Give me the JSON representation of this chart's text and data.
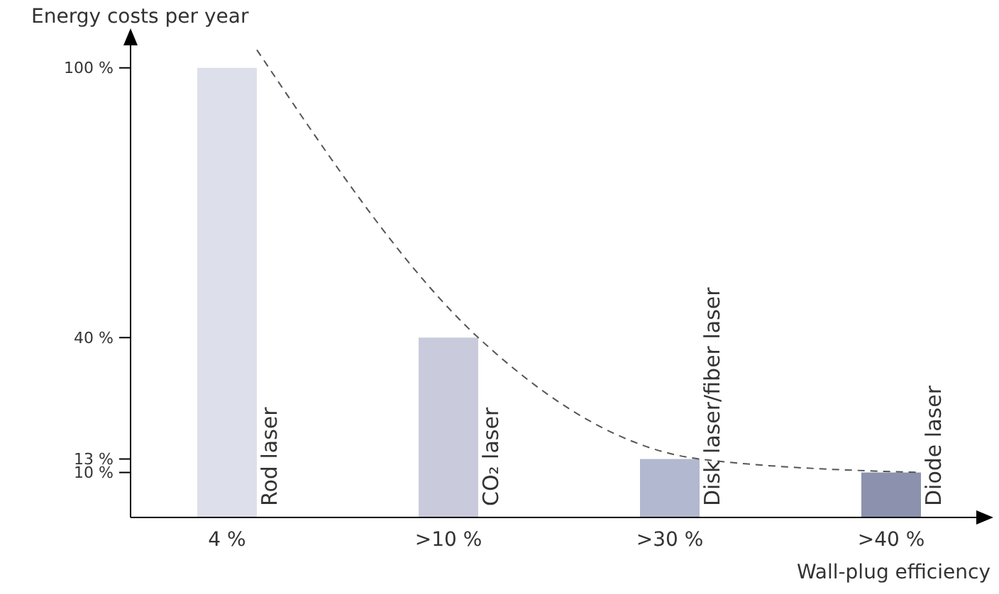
{
  "chart_data": {
    "type": "bar",
    "ylabel": "Energy costs per year",
    "xlabel": "Wall-plug efficiency",
    "categories": [
      "4 %",
      ">10 %",
      ">30 %",
      ">40 %"
    ],
    "series": [
      {
        "values": [
          100,
          40,
          13,
          10
        ],
        "colors": [
          "#dde0ea",
          "#c9cbdc",
          "#b2b8cf",
          "#8c92ad"
        ]
      },
      {
        "type": "line",
        "values": [
          104,
          40,
          13,
          10
        ],
        "color": "#555555",
        "line_style": "dashed",
        "marker": "none"
      }
    ],
    "ylim": [
      0,
      105
    ],
    "yticks": [
      {
        "value": 10,
        "label": "10 %"
      },
      {
        "value": 13,
        "label": "13 %"
      },
      {
        "value": 40,
        "label": "40 %"
      },
      {
        "value": 100,
        "label": "100 %"
      }
    ],
    "annotations": [
      {
        "text": "Rod laser",
        "x": "4 %",
        "y": 0
      },
      {
        "text": "CO₂ laser",
        "x": ">10 %",
        "y": 0
      },
      {
        "text": "Disk laser/fiber laser",
        "x": ">30 %",
        "y": 0
      },
      {
        "text": "Diode laser",
        "x": ">40 %",
        "y": 0
      }
    ],
    "grid": false
  }
}
